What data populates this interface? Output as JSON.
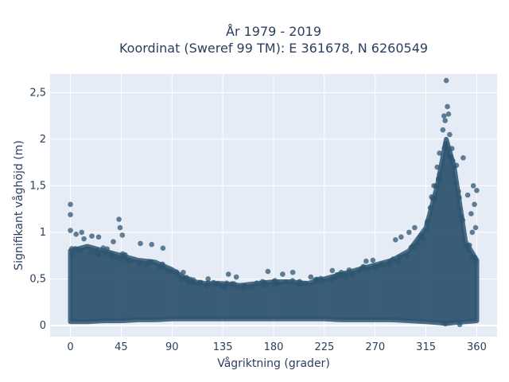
{
  "chart_data": {
    "type": "scatter",
    "title": [
      "År 1979 - 2019",
      "Koordinat (Sweref 99 TM): E 361678, N 6260549"
    ],
    "xlabel": "Vågriktning (grader)",
    "ylabel": "Signifikant våghöjd (m)",
    "xlim": [
      -18,
      378
    ],
    "ylim": [
      -0.12,
      2.7
    ],
    "x_ticks": [
      0,
      45,
      90,
      135,
      180,
      225,
      270,
      315,
      360
    ],
    "x_tick_labels": [
      "0",
      "45",
      "90",
      "135",
      "180",
      "225",
      "270",
      "315",
      "360"
    ],
    "y_ticks": [
      0,
      0.5,
      1,
      1.5,
      2,
      2.5
    ],
    "y_tick_labels": [
      "0",
      "0,5",
      "1",
      "1,5",
      "2",
      "2,5"
    ],
    "grid": true,
    "marker_color": "#2f5570",
    "background_color": "#e5ecf6",
    "envelope": {
      "x": [
        0,
        15,
        30,
        45,
        60,
        75,
        90,
        105,
        120,
        135,
        150,
        165,
        180,
        195,
        210,
        225,
        240,
        255,
        270,
        285,
        300,
        315,
        325,
        333,
        340,
        350,
        360
      ],
      "y_max": [
        0.8,
        0.85,
        0.8,
        0.75,
        0.7,
        0.68,
        0.6,
        0.48,
        0.45,
        0.45,
        0.43,
        0.45,
        0.47,
        0.47,
        0.45,
        0.5,
        0.55,
        0.6,
        0.65,
        0.7,
        0.8,
        1.05,
        1.5,
        2.0,
        1.7,
        0.9,
        0.7
      ],
      "y_min": [
        0.04,
        0.04,
        0.05,
        0.05,
        0.06,
        0.06,
        0.07,
        0.07,
        0.07,
        0.07,
        0.07,
        0.07,
        0.07,
        0.07,
        0.07,
        0.07,
        0.06,
        0.06,
        0.06,
        0.06,
        0.05,
        0.04,
        0.03,
        0.02,
        0.03,
        0.04,
        0.05
      ]
    },
    "outliers": [
      {
        "x": 0,
        "y": 1.3
      },
      {
        "x": 0,
        "y": 1.19
      },
      {
        "x": 0,
        "y": 1.02
      },
      {
        "x": 5,
        "y": 0.98
      },
      {
        "x": 10,
        "y": 1.0
      },
      {
        "x": 12,
        "y": 0.93
      },
      {
        "x": 19,
        "y": 0.96
      },
      {
        "x": 25,
        "y": 0.95
      },
      {
        "x": 38,
        "y": 0.9
      },
      {
        "x": 43,
        "y": 1.14
      },
      {
        "x": 44,
        "y": 1.05
      },
      {
        "x": 46,
        "y": 0.97
      },
      {
        "x": 62,
        "y": 0.88
      },
      {
        "x": 72,
        "y": 0.87
      },
      {
        "x": 82,
        "y": 0.83
      },
      {
        "x": 100,
        "y": 0.57
      },
      {
        "x": 122,
        "y": 0.5
      },
      {
        "x": 140,
        "y": 0.55
      },
      {
        "x": 147,
        "y": 0.52
      },
      {
        "x": 175,
        "y": 0.58
      },
      {
        "x": 188,
        "y": 0.55
      },
      {
        "x": 197,
        "y": 0.57
      },
      {
        "x": 213,
        "y": 0.52
      },
      {
        "x": 232,
        "y": 0.59
      },
      {
        "x": 240,
        "y": 0.57
      },
      {
        "x": 260,
        "y": 0.62
      },
      {
        "x": 262,
        "y": 0.69
      },
      {
        "x": 268,
        "y": 0.7
      },
      {
        "x": 285,
        "y": 0.7
      },
      {
        "x": 288,
        "y": 0.92
      },
      {
        "x": 293,
        "y": 0.95
      },
      {
        "x": 300,
        "y": 1.0
      },
      {
        "x": 305,
        "y": 1.05
      },
      {
        "x": 310,
        "y": 0.95
      },
      {
        "x": 316,
        "y": 1.1
      },
      {
        "x": 320,
        "y": 1.38
      },
      {
        "x": 322,
        "y": 1.5
      },
      {
        "x": 325,
        "y": 1.7
      },
      {
        "x": 327,
        "y": 1.85
      },
      {
        "x": 330,
        "y": 2.1
      },
      {
        "x": 331,
        "y": 2.25
      },
      {
        "x": 332,
        "y": 2.2
      },
      {
        "x": 333,
        "y": 2.63
      },
      {
        "x": 334,
        "y": 2.35
      },
      {
        "x": 335,
        "y": 2.27
      },
      {
        "x": 336,
        "y": 2.05
      },
      {
        "x": 338,
        "y": 1.9
      },
      {
        "x": 342,
        "y": 1.72
      },
      {
        "x": 348,
        "y": 1.8
      },
      {
        "x": 352,
        "y": 1.4
      },
      {
        "x": 355,
        "y": 1.2
      },
      {
        "x": 357,
        "y": 1.5
      },
      {
        "x": 358,
        "y": 1.3
      },
      {
        "x": 360,
        "y": 1.45
      },
      {
        "x": 359,
        "y": 1.05
      },
      {
        "x": 356,
        "y": 1.0
      },
      {
        "x": 345,
        "y": 0.01
      },
      {
        "x": 332,
        "y": 0.02
      }
    ]
  }
}
